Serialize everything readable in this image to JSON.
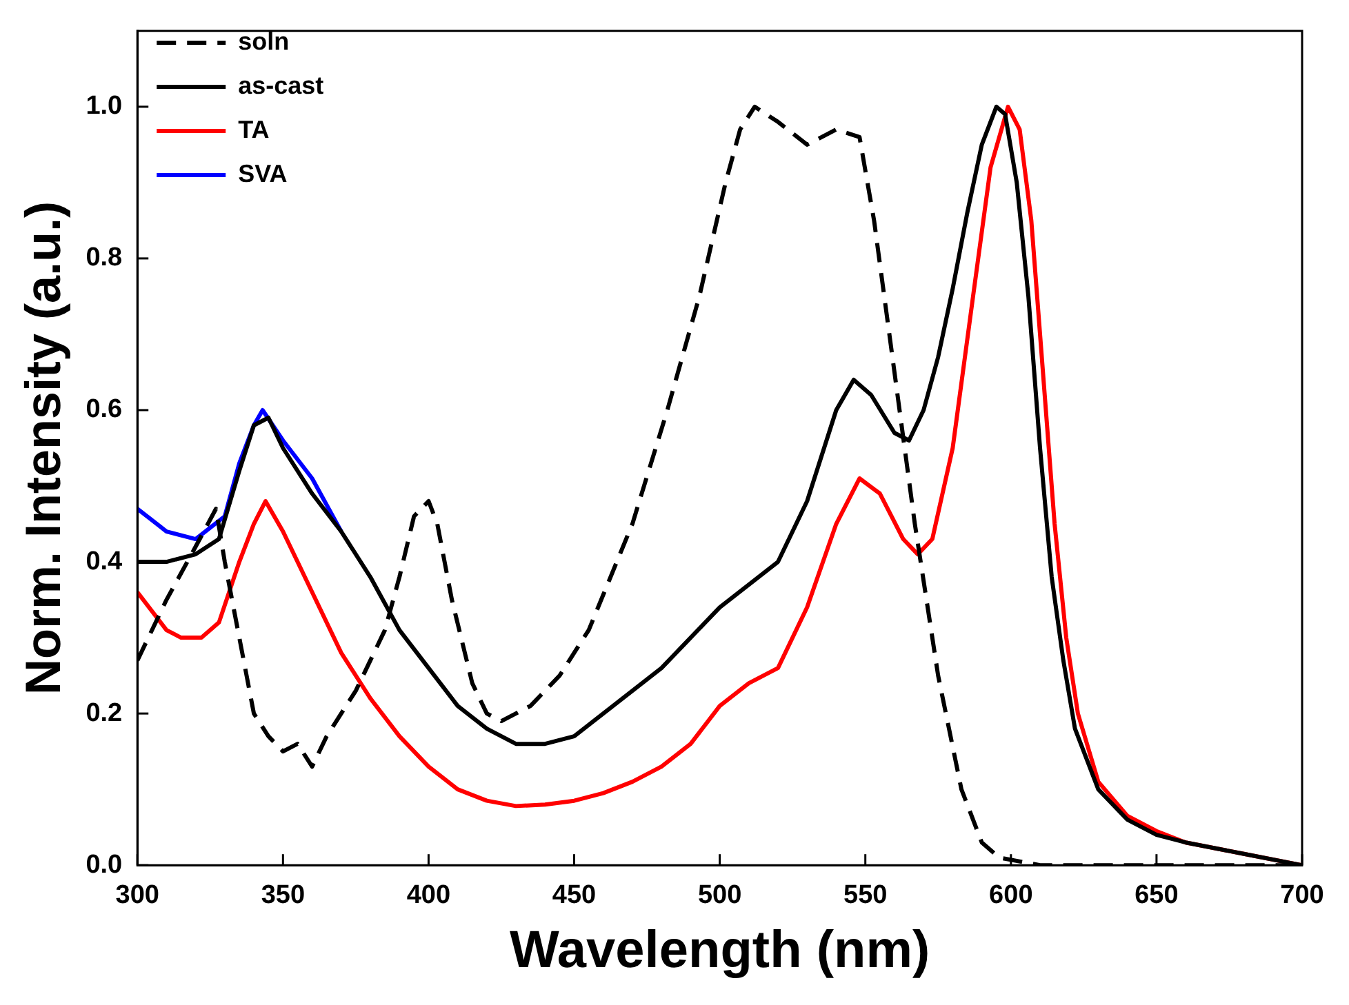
{
  "chart_data": {
    "type": "line",
    "xlabel": "Wavelength (nm)",
    "ylabel": "Norm. Intensity (a.u.)",
    "xlim": [
      300,
      700
    ],
    "xticks": [
      300,
      350,
      400,
      450,
      500,
      550,
      600,
      650,
      700
    ],
    "ylim": [
      0,
      1.1
    ],
    "yticks": [
      {
        "value": 0,
        "label": "0.0"
      },
      {
        "value": 0.2,
        "label": "0.2"
      },
      {
        "value": 0.4,
        "label": "0.4"
      },
      {
        "value": 0.6,
        "label": "0.6"
      },
      {
        "value": 0.8,
        "label": "0.8"
      },
      {
        "value": 1,
        "label": "1.0"
      }
    ],
    "grid": false,
    "legend": "top left",
    "marker": "none",
    "series": [
      {
        "name": "soln",
        "color": "#000000",
        "line_style": "dashed",
        "x": [
          300,
          310,
          320,
          327,
          330,
          335,
          340,
          345,
          350,
          355,
          360,
          365,
          375,
          385,
          390,
          395,
          400,
          403,
          408,
          415,
          420,
          425,
          435,
          445,
          455,
          470,
          482,
          493,
          502,
          507,
          512,
          520,
          530,
          540,
          548,
          553,
          560,
          567,
          575,
          583,
          590,
          596,
          610,
          650,
          700
        ],
        "values": [
          0.27,
          0.35,
          0.42,
          0.47,
          0.4,
          0.3,
          0.2,
          0.17,
          0.15,
          0.16,
          0.13,
          0.17,
          0.23,
          0.31,
          0.38,
          0.46,
          0.48,
          0.45,
          0.35,
          0.24,
          0.2,
          0.19,
          0.21,
          0.25,
          0.31,
          0.45,
          0.6,
          0.75,
          0.9,
          0.97,
          1.0,
          0.98,
          0.95,
          0.97,
          0.96,
          0.85,
          0.65,
          0.45,
          0.25,
          0.1,
          0.03,
          0.01,
          0,
          0,
          0
        ]
      },
      {
        "name": "as-cast",
        "color": "#000000",
        "line_style": "solid",
        "x": [
          300,
          310,
          320,
          328,
          335,
          340,
          345,
          350,
          360,
          370,
          380,
          390,
          400,
          410,
          420,
          430,
          440,
          450,
          460,
          470,
          480,
          490,
          500,
          510,
          520,
          530,
          540,
          546,
          552,
          560,
          565,
          570,
          575,
          580,
          585,
          590,
          595,
          598,
          602,
          606,
          610,
          614,
          618,
          622,
          630,
          640,
          650,
          660,
          680,
          700
        ],
        "values": [
          0.4,
          0.4,
          0.41,
          0.43,
          0.52,
          0.58,
          0.59,
          0.55,
          0.49,
          0.44,
          0.38,
          0.31,
          0.26,
          0.21,
          0.18,
          0.16,
          0.16,
          0.17,
          0.2,
          0.23,
          0.26,
          0.3,
          0.34,
          0.37,
          0.4,
          0.48,
          0.6,
          0.64,
          0.62,
          0.57,
          0.56,
          0.6,
          0.67,
          0.76,
          0.86,
          0.95,
          1.0,
          0.99,
          0.9,
          0.75,
          0.55,
          0.38,
          0.27,
          0.18,
          0.1,
          0.06,
          0.04,
          0.03,
          0.015,
          0
        ]
      },
      {
        "name": "TA",
        "color": "#ff0000",
        "line_style": "solid",
        "x": [
          300,
          310,
          315,
          322,
          328,
          335,
          340,
          344,
          350,
          360,
          370,
          380,
          390,
          400,
          410,
          420,
          430,
          440,
          450,
          460,
          470,
          480,
          490,
          500,
          510,
          520,
          530,
          540,
          548,
          555,
          563,
          568,
          573,
          580,
          587,
          593,
          599,
          603,
          607,
          611,
          615,
          619,
          623,
          630,
          640,
          650,
          660,
          680,
          700
        ],
        "values": [
          0.36,
          0.31,
          0.3,
          0.3,
          0.32,
          0.4,
          0.45,
          0.48,
          0.44,
          0.36,
          0.28,
          0.22,
          0.17,
          0.13,
          0.1,
          0.085,
          0.078,
          0.08,
          0.085,
          0.095,
          0.11,
          0.13,
          0.16,
          0.21,
          0.24,
          0.26,
          0.34,
          0.45,
          0.51,
          0.49,
          0.43,
          0.41,
          0.43,
          0.55,
          0.75,
          0.92,
          1.0,
          0.97,
          0.85,
          0.65,
          0.45,
          0.3,
          0.2,
          0.11,
          0.065,
          0.045,
          0.03,
          0.015,
          0
        ]
      },
      {
        "name": "SVA",
        "color": "#0000ff",
        "line_style": "solid",
        "x": [
          300,
          310,
          320,
          330,
          335,
          340,
          343,
          350,
          360,
          370
        ],
        "values": [
          0.47,
          0.44,
          0.43,
          0.46,
          0.53,
          0.58,
          0.6,
          0.56,
          0.51,
          0.44
        ]
      }
    ]
  }
}
